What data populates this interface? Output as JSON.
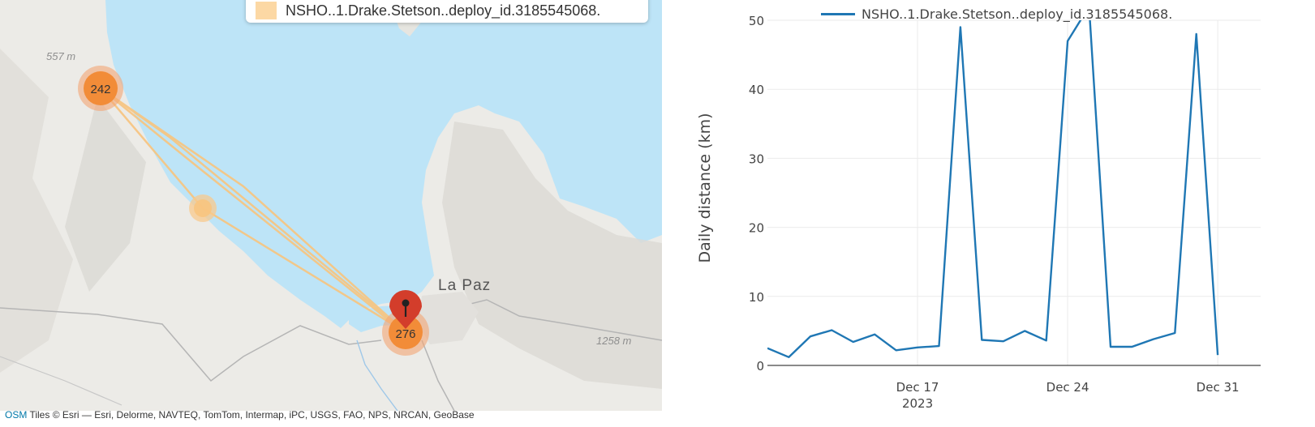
{
  "map": {
    "legend_label": "NSHO..1.Drake.Stetson..deploy_id.3185545068.",
    "legend_color": "#fcd8a4",
    "track_color": "#f8c47e",
    "city_label": "La Paz",
    "elevation_labels": [
      "557 m",
      "1258 m"
    ],
    "clusters": [
      {
        "count": "242",
        "kind": "large"
      },
      {
        "count": "276",
        "kind": "large"
      },
      {
        "count": "",
        "kind": "small"
      }
    ],
    "marker_color": "#d33d2b",
    "icons": [
      "map-pin-icon"
    ],
    "attribution": {
      "link_text": "OSM",
      "text": "Tiles © Esri — Esri, Delorme, NAVTEQ, TomTom, Intermap, iPC, USGS, FAO, NPS, NRCAN, GeoBase"
    }
  },
  "chart_data": {
    "type": "line",
    "title": "",
    "xlabel": "",
    "ylabel": "Daily distance (km)",
    "x_tick_labels": [
      "Dec 17",
      "Dec 24",
      "Dec 31"
    ],
    "x_tick_dates": [
      "2023-12-17",
      "2023-12-24",
      "2023-12-31"
    ],
    "x_year_label": "2023",
    "xlim": [
      "2023-12-10",
      "2024-01-02"
    ],
    "ylim": [
      0,
      50
    ],
    "y_ticks": [
      0,
      10,
      20,
      30,
      40,
      50
    ],
    "grid": true,
    "legend_position": "top",
    "series": [
      {
        "name": "NSHO..1.Drake.Stetson..deploy_id.3185545068.",
        "color": "#1f77b4",
        "x": [
          "2023-12-10",
          "2023-12-11",
          "2023-12-12",
          "2023-12-13",
          "2023-12-14",
          "2023-12-15",
          "2023-12-16",
          "2023-12-17",
          "2023-12-18",
          "2023-12-19",
          "2023-12-20",
          "2023-12-21",
          "2023-12-22",
          "2023-12-23",
          "2023-12-24",
          "2023-12-25",
          "2023-12-26",
          "2023-12-27",
          "2023-12-28",
          "2023-12-29",
          "2023-12-30",
          "2023-12-31",
          "2024-01-01",
          "2024-01-02"
        ],
        "y": [
          2.5,
          1.2,
          4.2,
          5.1,
          3.4,
          4.5,
          2.2,
          2.6,
          2.8,
          49,
          3.7,
          3.5,
          5.0,
          3.6,
          47,
          52,
          2.7,
          2.7,
          3.8,
          4.7,
          48,
          1.5,
          null,
          null
        ]
      }
    ]
  }
}
